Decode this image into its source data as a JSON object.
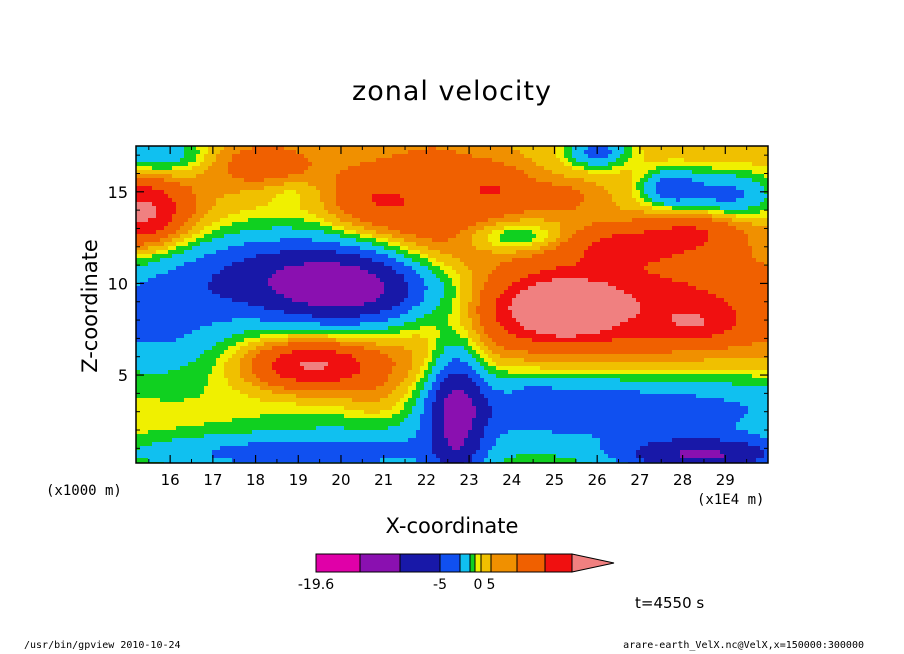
{
  "page": {
    "footer_left": "/usr/bin/gpview  2010-10-24",
    "footer_right": "arare-earth_VelX.nc@VelX,x=150000:300000",
    "time_label": "t=4550 s"
  },
  "chart_data": {
    "type": "heatmap",
    "title": "zonal velocity",
    "xlabel": "X-coordinate",
    "ylabel": "Z-coordinate",
    "x_unit": "(x1E4 m)",
    "y_unit": "(x1000 m)",
    "xlim": [
      15.2,
      30.0
    ],
    "ylim": [
      0.2,
      17.5
    ],
    "x_ticks": [
      16,
      17,
      18,
      19,
      20,
      21,
      22,
      23,
      24,
      25,
      26,
      27,
      28,
      29
    ],
    "y_ticks": [
      5,
      10,
      15
    ],
    "colorbar": {
      "colors": [
        "#e000a8",
        "#8a10b0",
        "#1818a8",
        "#1050f0",
        "#10c0f0",
        "#10d020",
        "#f0f000",
        "#f0c000",
        "#f09000",
        "#f06000",
        "#f01010",
        "#f08080"
      ],
      "labels": [
        {
          "value": -19.6,
          "text": "-19.6"
        },
        {
          "value": -5,
          "text": "-5"
        },
        {
          "value": 0,
          "text": "0"
        },
        {
          "value": 5,
          "text": "5"
        }
      ],
      "extend": "max"
    },
    "fields": [
      {
        "x": 25.2,
        "z": 8.6,
        "v": 12.0,
        "sx": 0.7,
        "sz": 0.9
      },
      {
        "x": 24.8,
        "z": 8.8,
        "v": 5.0,
        "sx": 2.0,
        "sz": 1.6
      },
      {
        "x": 27.5,
        "z": 8.8,
        "v": 5.0,
        "sx": 3.0,
        "sz": 2.0
      },
      {
        "x": 28.3,
        "z": 7.8,
        "v": 3.5,
        "sx": 0.6,
        "sz": 0.6
      },
      {
        "x": 19.2,
        "z": 5.6,
        "v": 7.5,
        "sx": 1.0,
        "sz": 1.0
      },
      {
        "x": 20.3,
        "z": 5.0,
        "v": 3.0,
        "sx": 1.3,
        "sz": 1.3
      },
      {
        "x": 21.0,
        "z": 3.4,
        "v": 3.0,
        "sx": 0.7,
        "sz": 0.9
      },
      {
        "x": 15.3,
        "z": 13.8,
        "v": 7.0,
        "sx": 0.7,
        "sz": 1.3
      },
      {
        "x": 15.6,
        "z": 13.6,
        "v": 3.0,
        "sx": 1.0,
        "sz": 2.0
      },
      {
        "x": 20.3,
        "z": 9.6,
        "v": -14.0,
        "sx": 1.8,
        "sz": 1.5
      },
      {
        "x": 18.5,
        "z": 11.0,
        "v": -6.0,
        "sx": 2.2,
        "sz": 1.6
      },
      {
        "x": 15.6,
        "z": 8.0,
        "v": -6.5,
        "sx": 1.4,
        "sz": 2.4
      },
      {
        "x": 22.7,
        "z": 3.0,
        "v": -10.0,
        "sx": 0.45,
        "sz": 3.0
      },
      {
        "x": 26.0,
        "z": 3.1,
        "v": -8.0,
        "sx": 4.5,
        "sz": 1.4
      },
      {
        "x": 28.5,
        "z": 0.6,
        "v": -12.0,
        "sx": 1.5,
        "sz": 0.7
      },
      {
        "x": 19.0,
        "z": 0.7,
        "v": -7.0,
        "sx": 3.0,
        "sz": 0.8
      },
      {
        "x": 22.2,
        "z": 13.5,
        "v": 5.0,
        "sx": 1.0,
        "sz": 3.0
      },
      {
        "x": 18.2,
        "z": 16.5,
        "v": 4.0,
        "sx": 0.9,
        "sz": 0.9
      },
      {
        "x": 20.6,
        "z": 14.5,
        "v": 4.0,
        "sx": 0.7,
        "sz": 1.4
      },
      {
        "x": 23.7,
        "z": 15.2,
        "v": 3.5,
        "sx": 0.6,
        "sz": 1.0
      },
      {
        "x": 26.6,
        "z": 12.2,
        "v": 5.0,
        "sx": 1.5,
        "sz": 0.8
      },
      {
        "x": 28.4,
        "z": 13.2,
        "v": 4.0,
        "sx": 0.8,
        "sz": 0.8
      },
      {
        "x": 25.1,
        "z": 14.7,
        "v": 3.0,
        "sx": 0.7,
        "sz": 0.7
      },
      {
        "x": 15.7,
        "z": 17.0,
        "v": -6.0,
        "sx": 0.8,
        "sz": 0.8
      },
      {
        "x": 26.0,
        "z": 17.2,
        "v": -7.0,
        "sx": 0.5,
        "sz": 0.6
      },
      {
        "x": 27.7,
        "z": 15.2,
        "v": -7.0,
        "sx": 0.45,
        "sz": 0.7
      },
      {
        "x": 29.0,
        "z": 14.8,
        "v": -7.0,
        "sx": 0.8,
        "sz": 0.9
      },
      {
        "x": 24.2,
        "z": 12.5,
        "v": -5.0,
        "sx": 0.9,
        "sz": 0.6
      },
      {
        "x": 18.8,
        "z": 15.0,
        "v": -1.5,
        "sx": 0.5,
        "sz": 0.5
      },
      {
        "x": 24.6,
        "z": 4.1,
        "v": -1.5,
        "sx": 0.3,
        "sz": 0.5
      }
    ]
  }
}
